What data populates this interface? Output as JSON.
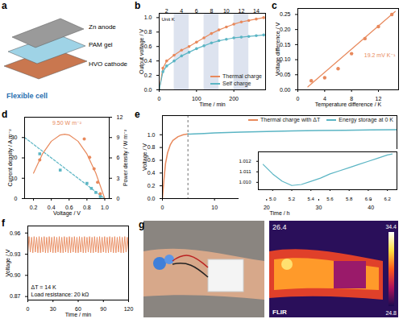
{
  "chart_data": [
    {
      "panel": "b",
      "type": "line",
      "x_label": "Time / min",
      "y_label": "Output voltage / V",
      "xlim": [
        0,
        285
      ],
      "xticks": [
        0,
        100,
        200
      ],
      "ylim": [
        0,
        1.06
      ],
      "yticks": [
        {
          "value": 0,
          "label": "0.0"
        },
        {
          "value": 0.2,
          "label": "0.2"
        },
        {
          "value": 0.4,
          "label": "0.4"
        },
        {
          "value": 0.6,
          "label": "0.6"
        },
        {
          "value": 0.8,
          "label": "0.8"
        },
        {
          "value": 1,
          "label": "1.0"
        }
      ],
      "intervals_title": "Unit K",
      "intervals": [
        {
          "label": "2",
          "start": 0,
          "end": 40,
          "shaded": false
        },
        {
          "label": "4",
          "start": 40,
          "end": 80,
          "shaded": true
        },
        {
          "label": "6",
          "start": 80,
          "end": 120,
          "shaded": false
        },
        {
          "label": "8",
          "start": 120,
          "end": 160,
          "shaded": true
        },
        {
          "label": "10",
          "start": 160,
          "end": 200,
          "shaded": false
        },
        {
          "label": "12",
          "start": 200,
          "end": 240,
          "shaded": true
        },
        {
          "label": "14",
          "start": 240,
          "end": 280,
          "shaded": false
        }
      ],
      "legend": "bottom-right",
      "x": [
        0,
        10,
        20,
        40,
        60,
        80,
        100,
        120,
        140,
        160,
        180,
        200,
        220,
        240,
        260,
        280
      ],
      "series": [
        {
          "name": "Thermal charge",
          "color": "#e8895c",
          "marker": "circle",
          "values": [
            0,
            0.3,
            0.4,
            0.48,
            0.55,
            0.6,
            0.66,
            0.72,
            0.78,
            0.83,
            0.87,
            0.91,
            0.94,
            0.96,
            0.98,
            1.0
          ]
        },
        {
          "name": "Self charge",
          "color": "#5bb5c4",
          "marker": "circle",
          "values": [
            0,
            0.25,
            0.33,
            0.4,
            0.47,
            0.52,
            0.57,
            0.61,
            0.65,
            0.68,
            0.7,
            0.72,
            0.73,
            0.74,
            0.75,
            0.76
          ]
        }
      ]
    },
    {
      "panel": "c",
      "type": "scatter",
      "x_label": "Temperature difference / K",
      "y_label": "Voltage difference / V",
      "xlim": [
        0,
        15
      ],
      "xticks": [
        0,
        4,
        8,
        12
      ],
      "ylim": [
        0,
        0.27
      ],
      "yticks": [
        {
          "value": 0,
          "label": "0.00"
        },
        {
          "value": 0.05,
          "label": "0.05"
        },
        {
          "value": 0.1,
          "label": "0.10"
        },
        {
          "value": 0.15,
          "label": "0.15"
        },
        {
          "value": 0.2,
          "label": "0.20"
        },
        {
          "value": 0.25,
          "label": "0.25"
        }
      ],
      "annotation": "19.2 mV K⁻¹",
      "series": [
        {
          "type": "scatter",
          "color": "#e8895c",
          "marker": "circle",
          "x": [
            2,
            4,
            6,
            8,
            10,
            12,
            14
          ],
          "values": [
            0.03,
            0.04,
            0.07,
            0.12,
            0.17,
            0.21,
            0.25
          ]
        },
        {
          "type": "line",
          "color": "#e8895c",
          "x": [
            1.5,
            14.5
          ],
          "values": [
            0.01,
            0.26
          ]
        }
      ]
    },
    {
      "panel": "d",
      "type": "scatter",
      "x_label": "Voltage / V",
      "y_label": "Current density / A m⁻²",
      "y2_label": "Power density / W m⁻²",
      "xlim": [
        0.1,
        1.05
      ],
      "xticks": [
        {
          "value": 0.2,
          "label": "0.2"
        },
        {
          "value": 0.4,
          "label": "0.4"
        },
        {
          "value": 0.6,
          "label": "0.6"
        },
        {
          "value": 0.8,
          "label": "0.8"
        },
        {
          "value": 1,
          "label": "1.0"
        }
      ],
      "ylim": [
        0,
        40
      ],
      "yticks": [
        0,
        10,
        20,
        30
      ],
      "y2lim": [
        0,
        12
      ],
      "y2ticks": [
        0,
        3,
        6,
        9,
        12
      ],
      "series": [
        {
          "type": "scatter",
          "color": "#5bb5c4",
          "marker": "square",
          "x": [
            0.27,
            0.5,
            0.8,
            0.85,
            0.9,
            0.95
          ],
          "values": [
            22,
            14,
            7.5,
            5,
            3,
            1
          ]
        },
        {
          "type": "line",
          "color": "#5bb5c4",
          "line_style": "dashed",
          "x": [
            0.1,
            1.0
          ],
          "values": [
            30,
            0
          ]
        },
        {
          "type": "scatter",
          "color": "#e8895c",
          "marker": "circle",
          "axis": "y2",
          "x": [
            0.27,
            0.77,
            0.83,
            0.88,
            0.92,
            0.95
          ],
          "values": [
            5.7,
            8.8,
            6.1,
            4.4,
            2.4,
            0.7
          ]
        },
        {
          "type": "line",
          "color": "#e8895c",
          "axis": "y2",
          "annotation": "9.50 W m⁻²",
          "x": [
            0.2,
            0.3,
            0.4,
            0.5,
            0.55,
            0.6,
            0.7,
            0.8,
            0.9,
            1.0
          ],
          "values": [
            3.75,
            6.57,
            8.45,
            9.38,
            9.5,
            9.38,
            8.45,
            6.57,
            3.75,
            0
          ]
        }
      ]
    },
    {
      "panel": "e",
      "type": "line",
      "x_label": "Time / h",
      "y_label": "Voltage / V",
      "xlim": [
        0,
        45
      ],
      "xticks": [
        0,
        10,
        20,
        30,
        40
      ],
      "ylim": [
        0,
        1.3
      ],
      "yticks": [
        {
          "value": 0,
          "label": "0.0"
        },
        {
          "value": 0.2,
          "label": "0.2"
        },
        {
          "value": 0.4,
          "label": "0.4"
        },
        {
          "value": 0.6,
          "label": "0.6"
        },
        {
          "value": 0.8,
          "label": "0.8"
        },
        {
          "value": 1,
          "label": "1.0"
        }
      ],
      "legend": "top-right",
      "series": [
        {
          "name": "Thermal charge with ΔT",
          "color": "#e8895c",
          "x": [
            0,
            0.3,
            0.6,
            1,
            1.5,
            2,
            3,
            4,
            4.9
          ],
          "values": [
            0,
            0.3,
            0.55,
            0.72,
            0.84,
            0.91,
            0.97,
            1.0,
            1.0117
          ]
        },
        {
          "name": "Energy storage at 0 K",
          "color": "#5bb5c4",
          "x": [
            4.9,
            5.2,
            6,
            8,
            10,
            15,
            20,
            25,
            30,
            35,
            40,
            45
          ],
          "values": [
            1.0117,
            1.0097,
            1.012,
            1.02,
            1.028,
            1.042,
            1.052,
            1.06,
            1.066,
            1.071,
            1.075,
            1.078
          ]
        }
      ]
    },
    {
      "type": "line",
      "xlim": [
        4.85,
        6.3
      ],
      "xticks": [
        {
          "value": 5,
          "label": "5.0"
        },
        {
          "value": 5.2,
          "label": "5.2"
        },
        {
          "value": 5.4,
          "label": "5.4"
        },
        {
          "value": 5.6,
          "label": "5.6"
        },
        {
          "value": 5.8,
          "label": "5.8"
        },
        {
          "value": 6,
          "label": "6.0"
        },
        {
          "value": 6.2,
          "label": "6.2"
        }
      ],
      "ylim": [
        1.0093,
        1.0129
      ],
      "yticks": [
        {
          "value": 1.01,
          "label": "1.010"
        },
        1.011,
        1.012
      ],
      "series": [
        {
          "color": "#5bb5c4",
          "x": [
            4.9,
            5.0,
            5.1,
            5.2,
            5.3,
            5.4,
            5.5,
            5.6,
            5.7,
            5.8,
            5.9,
            6.0,
            6.1,
            6.2,
            6.25
          ],
          "values": [
            1.0117,
            1.0108,
            1.0101,
            1.0097,
            1.0098,
            1.0101,
            1.0104,
            1.0108,
            1.0111,
            1.0114,
            1.0117,
            1.012,
            1.0123,
            1.0126,
            1.0127
          ]
        }
      ]
    },
    {
      "panel": "f",
      "type": "line",
      "x_label": "Time / min",
      "y_label": "Voltage / V",
      "xlim": [
        0,
        120
      ],
      "xticks": [
        0,
        30,
        60,
        90,
        120
      ],
      "ylim": [
        0.865,
        0.97
      ],
      "yticks": [
        0.87,
        {
          "value": 0.9,
          "label": "0.90"
        },
        0.93,
        0.96
      ],
      "annotations": [
        "ΔT = 14 K",
        "Load resistance: 20 kΩ"
      ],
      "x": [
        0,
        1.5,
        3,
        4.5,
        6,
        7.5,
        9,
        10.5,
        12,
        13.5,
        15,
        16.5,
        18,
        19.5,
        21,
        22.5,
        24,
        25.5,
        27,
        28.5,
        30,
        31.5,
        33,
        34.5,
        36,
        37.5,
        39,
        40.5,
        42,
        43.5,
        45,
        46.5,
        48,
        49.5,
        51,
        52.5,
        54,
        55.5,
        57,
        58.5,
        60,
        61.5,
        63,
        64.5,
        66,
        67.5,
        69,
        70.5,
        72,
        73.5,
        75,
        76.5,
        78,
        79.5,
        81,
        82.5,
        84,
        85.5,
        87,
        88.5,
        90,
        91.5,
        93,
        94.5,
        96,
        97.5,
        99,
        100.5,
        102,
        103.5,
        105,
        106.5,
        108,
        109.5,
        111,
        112.5,
        114,
        115.5,
        117,
        118.5,
        120
      ],
      "series": [
        {
          "color": "#e8895c",
          "values": [
            0.932,
            0.955,
            0.933,
            0.954,
            0.932,
            0.955,
            0.933,
            0.954,
            0.932,
            0.955,
            0.932,
            0.954,
            0.933,
            0.955,
            0.932,
            0.954,
            0.932,
            0.955,
            0.933,
            0.954,
            0.932,
            0.955,
            0.932,
            0.954,
            0.933,
            0.955,
            0.932,
            0.954,
            0.932,
            0.955,
            0.933,
            0.954,
            0.932,
            0.955,
            0.932,
            0.954,
            0.933,
            0.955,
            0.932,
            0.954,
            0.932,
            0.955,
            0.933,
            0.954,
            0.932,
            0.955,
            0.932,
            0.954,
            0.933,
            0.955,
            0.932,
            0.954,
            0.932,
            0.955,
            0.933,
            0.954,
            0.932,
            0.955,
            0.932,
            0.954,
            0.933,
            0.955,
            0.932,
            0.954,
            0.932,
            0.955,
            0.933,
            0.954,
            0.932,
            0.955,
            0.932,
            0.954,
            0.933,
            0.955,
            0.932,
            0.954,
            0.932,
            0.955,
            0.933,
            0.954,
            0.932
          ]
        }
      ]
    }
  ],
  "diagram": {
    "panel": "a",
    "title": "Flexible cell",
    "labels": [
      "Zn anode",
      "PAM gel",
      "HVO cathode"
    ]
  },
  "photo": {
    "panel": "g",
    "reading": 26.4,
    "scale_max": 34.4,
    "scale_min": 24.8,
    "brand": "FLIR"
  }
}
